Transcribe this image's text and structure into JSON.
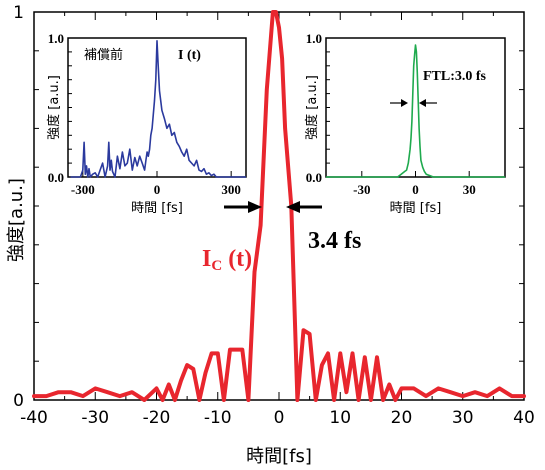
{
  "chart_data": [
    {
      "type": "line",
      "role": "main",
      "xlabel": "時間[fs]",
      "ylabel": "強度[a.u.]",
      "xlim": [
        -40,
        40
      ],
      "ylim": [
        0,
        1
      ],
      "xticks": [
        "-40",
        "-30",
        "-20",
        "-10",
        "0",
        "10",
        "20",
        "30",
        "40"
      ],
      "yticks": [
        "0",
        "1"
      ],
      "color": "#e8262e",
      "series": [
        {
          "name": "IC (t)",
          "x": [
            -40,
            -38,
            -36,
            -34,
            -32,
            -30,
            -28,
            -26,
            -24,
            -22,
            -20,
            -19,
            -18,
            -17,
            -16,
            -15,
            -14,
            -13,
            -12,
            -11,
            -10,
            -9,
            -8,
            -7,
            -6,
            -5,
            -4,
            -3,
            -2,
            -1,
            -0.5,
            0,
            0.5,
            1,
            2,
            3,
            4,
            5,
            6,
            7,
            8,
            9,
            10,
            11,
            12,
            13,
            14,
            15,
            16,
            17,
            18,
            19,
            20,
            22,
            24,
            26,
            28,
            30,
            32,
            34,
            36,
            38,
            40
          ],
          "y": [
            0.01,
            0.01,
            0.02,
            0.02,
            0.01,
            0.03,
            0.02,
            0.01,
            0.02,
            0.0,
            0.03,
            0.0,
            0.04,
            0.0,
            0.05,
            0.09,
            0.08,
            0.0,
            0.07,
            0.12,
            0.12,
            0.0,
            0.13,
            0.13,
            0.13,
            0.0,
            0.33,
            0.45,
            0.8,
            1.0,
            1.0,
            0.96,
            0.88,
            0.7,
            0.5,
            0.0,
            0.18,
            0.17,
            0.0,
            0.09,
            0.12,
            0.0,
            0.12,
            0.02,
            0.12,
            0.0,
            0.11,
            0.0,
            0.11,
            0.0,
            0.04,
            0.0,
            0.03,
            0.03,
            0.01,
            0.03,
            0.02,
            0.01,
            0.02,
            0.01,
            0.03,
            0.01,
            0.01
          ]
        }
      ],
      "annotation_label": "I",
      "annotation_sub": "C",
      "annotation_suffix": " (t)",
      "width_label": "3.4 fs"
    },
    {
      "type": "line",
      "role": "inset-left",
      "title_left": "補償前",
      "title_right": "I (t)",
      "xlabel": "時間 [fs]",
      "ylabel": "強度 [a.u.]",
      "xlim": [
        -360,
        360
      ],
      "ylim": [
        0,
        1
      ],
      "xticks": [
        "-300",
        "0",
        "300"
      ],
      "xtick_values": [
        -300,
        0,
        300
      ],
      "yticks": [
        "0.0",
        "1.0"
      ],
      "color": "#2b3a9e",
      "series": [
        {
          "name": "",
          "x": [
            -350,
            -330,
            -310,
            -300,
            -295,
            -290,
            -285,
            -280,
            -275,
            -270,
            -260,
            -250,
            -240,
            -230,
            -220,
            -210,
            -200,
            -195,
            -190,
            -185,
            -180,
            -170,
            -160,
            -150,
            -140,
            -130,
            -120,
            -110,
            -100,
            -90,
            -80,
            -70,
            -60,
            -50,
            -45,
            -40,
            -35,
            -30,
            -25,
            -20,
            -15,
            -10,
            -5,
            0,
            5,
            10,
            15,
            20,
            30,
            40,
            50,
            60,
            70,
            80,
            90,
            100,
            110,
            120,
            130,
            140,
            150,
            160,
            170,
            180,
            190,
            200,
            210,
            220,
            230,
            240,
            250,
            260,
            270,
            280,
            290,
            300,
            310,
            320,
            340,
            360
          ],
          "y": [
            0.0,
            0.0,
            0.0,
            0.05,
            0.25,
            0.02,
            0.08,
            0.0,
            0.06,
            0.0,
            0.02,
            0.03,
            0.0,
            0.05,
            0.1,
            0.0,
            0.08,
            0.25,
            0.05,
            0.12,
            0.04,
            0.0,
            0.15,
            0.06,
            0.18,
            0.08,
            0.1,
            0.2,
            0.05,
            0.14,
            0.08,
            0.15,
            0.1,
            0.05,
            0.12,
            0.18,
            0.15,
            0.2,
            0.3,
            0.35,
            0.45,
            0.55,
            0.7,
            0.98,
            0.8,
            0.62,
            0.55,
            0.48,
            0.42,
            0.35,
            0.38,
            0.3,
            0.32,
            0.25,
            0.22,
            0.18,
            0.15,
            0.2,
            0.12,
            0.1,
            0.08,
            0.12,
            0.05,
            0.04,
            0.06,
            0.02,
            0.03,
            0.01,
            0.02,
            0.0,
            0.0,
            0.0,
            0.0,
            0.0,
            0.0,
            0.0,
            0.0,
            0.0,
            0.0,
            0.0
          ]
        }
      ]
    },
    {
      "type": "line",
      "role": "inset-right",
      "title_right": "FTL:3.0 fs",
      "xlabel": "時間 [fs]",
      "ylabel": "強度 [a.u.]",
      "xlim": [
        -50,
        50
      ],
      "ylim": [
        0,
        1
      ],
      "xticks": [
        "-30",
        "0",
        "30"
      ],
      "xtick_values": [
        -30,
        0,
        30
      ],
      "yticks": [
        "0.0",
        "1.0"
      ],
      "color": "#1faa4e",
      "series": [
        {
          "name": "",
          "x": [
            -50,
            -30,
            -20,
            -10,
            -8,
            -6,
            -5,
            -4,
            -3,
            -2.5,
            -2,
            -1.5,
            -1,
            -0.5,
            0,
            0.5,
            1,
            1.5,
            2,
            2.5,
            3,
            4,
            5,
            6,
            8,
            10,
            20,
            30,
            50
          ],
          "y": [
            0.0,
            0.0,
            0.0,
            0.0,
            0.02,
            0.04,
            0.05,
            0.1,
            0.2,
            0.28,
            0.4,
            0.6,
            0.8,
            0.88,
            0.95,
            0.9,
            0.75,
            0.55,
            0.35,
            0.22,
            0.12,
            0.07,
            0.04,
            0.02,
            0.01,
            0.0,
            0.0,
            0.0,
            0.0
          ]
        }
      ]
    }
  ]
}
